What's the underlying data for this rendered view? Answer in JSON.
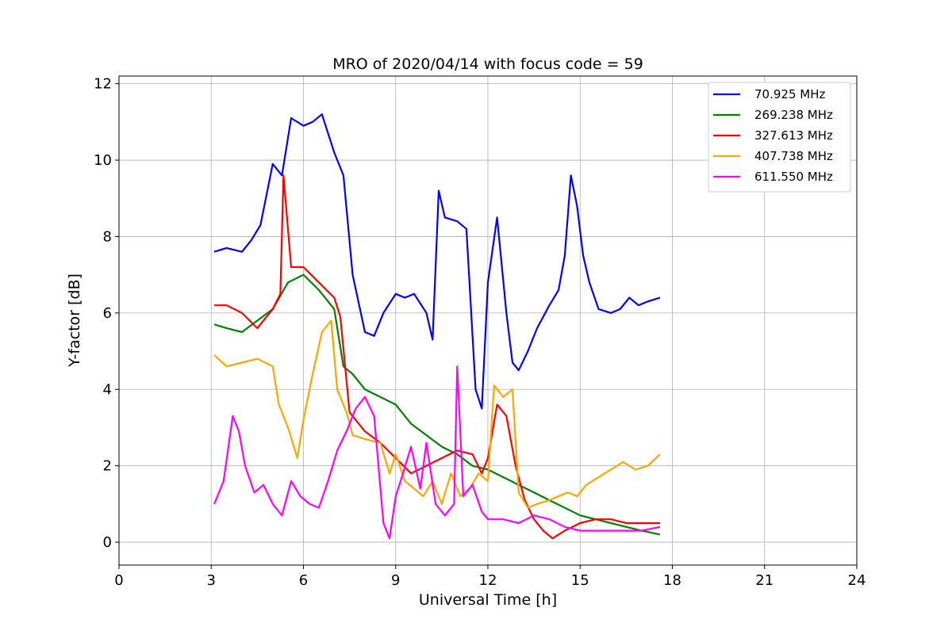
{
  "chart_data": {
    "type": "line",
    "title": "MRO of 2020/04/14 with focus code = 59",
    "xlabel": "Universal Time [h]",
    "ylabel": "Y-factor [dB]",
    "xlim": [
      0,
      24
    ],
    "ylim": [
      -0.6,
      12.2
    ],
    "xticks": [
      0,
      3,
      6,
      9,
      12,
      15,
      18,
      21,
      24
    ],
    "yticks": [
      0,
      2,
      4,
      6,
      8,
      10,
      12
    ],
    "grid": true,
    "legend_position": "top-right",
    "series": [
      {
        "name": " 70.925 MHz",
        "color": "#0000ff",
        "x": [
          3.1,
          3.5,
          4.0,
          4.3,
          4.6,
          5.0,
          5.3,
          5.6,
          6.0,
          6.3,
          6.6,
          7.0,
          7.3,
          7.6,
          8.0,
          8.3,
          8.6,
          9.0,
          9.3,
          9.6,
          10.0,
          10.2,
          10.4,
          10.6,
          11.0,
          11.3,
          11.6,
          11.8,
          12.0,
          12.3,
          12.6,
          12.8,
          13.0,
          13.3,
          13.6,
          14.0,
          14.3,
          14.5,
          14.7,
          14.9,
          15.1,
          15.3,
          15.6,
          16.0,
          16.3,
          16.6,
          16.9,
          17.2,
          17.6
        ],
        "values": [
          7.6,
          7.7,
          7.6,
          7.9,
          8.3,
          9.9,
          9.6,
          11.1,
          10.9,
          11.0,
          11.2,
          10.2,
          9.6,
          7.0,
          5.5,
          5.4,
          6.0,
          6.5,
          6.4,
          6.5,
          6.0,
          5.3,
          9.2,
          8.5,
          8.4,
          8.2,
          4.0,
          3.5,
          6.8,
          8.5,
          6.0,
          4.7,
          4.5,
          5.0,
          5.6,
          6.2,
          6.6,
          7.5,
          9.6,
          8.8,
          7.5,
          6.8,
          6.1,
          6.0,
          6.1,
          6.4,
          6.2,
          6.3,
          6.4
        ]
      },
      {
        "name": "269.238 MHz",
        "color": "#008000",
        "x": [
          3.1,
          3.5,
          4.0,
          4.5,
          5.0,
          5.5,
          6.0,
          6.5,
          7.0,
          7.3,
          7.6,
          8.0,
          8.5,
          9.0,
          9.5,
          10.0,
          10.5,
          11.0,
          11.5,
          12.0,
          12.5,
          13.0,
          13.5,
          14.0,
          14.5,
          15.0,
          15.5,
          16.0,
          16.5,
          17.0,
          17.6
        ],
        "values": [
          5.7,
          5.6,
          5.5,
          5.8,
          6.1,
          6.8,
          7.0,
          6.6,
          6.1,
          4.6,
          4.4,
          4.0,
          3.8,
          3.6,
          3.1,
          2.8,
          2.5,
          2.3,
          2.0,
          1.9,
          1.7,
          1.5,
          1.3,
          1.1,
          0.9,
          0.7,
          0.6,
          0.5,
          0.4,
          0.3,
          0.2
        ]
      },
      {
        "name": "327.613 MHz",
        "color": "#ff0000",
        "x": [
          3.1,
          3.5,
          4.0,
          4.5,
          5.0,
          5.25,
          5.35,
          5.6,
          6.0,
          6.5,
          7.0,
          7.2,
          7.5,
          8.0,
          8.5,
          9.0,
          9.5,
          10.0,
          10.5,
          11.0,
          11.5,
          11.8,
          12.0,
          12.3,
          12.6,
          12.9,
          13.2,
          13.5,
          13.8,
          14.1,
          14.5,
          15.0,
          15.5,
          16.0,
          16.5,
          17.0,
          17.6
        ],
        "values": [
          6.2,
          6.2,
          6.0,
          5.6,
          6.1,
          6.5,
          9.6,
          7.2,
          7.2,
          6.8,
          6.4,
          5.9,
          3.4,
          2.9,
          2.6,
          2.2,
          1.8,
          2.0,
          2.2,
          2.4,
          2.3,
          1.8,
          2.2,
          3.6,
          3.3,
          2.0,
          1.1,
          0.6,
          0.3,
          0.1,
          0.3,
          0.5,
          0.6,
          0.6,
          0.5,
          0.5,
          0.5
        ]
      },
      {
        "name": "407.738 MHz",
        "color": "#ffa500",
        "x": [
          3.1,
          3.5,
          4.0,
          4.5,
          5.0,
          5.2,
          5.5,
          5.8,
          6.0,
          6.3,
          6.6,
          6.9,
          7.1,
          7.4,
          7.6,
          8.0,
          8.5,
          8.8,
          9.0,
          9.3,
          9.6,
          9.9,
          10.2,
          10.5,
          10.8,
          11.1,
          11.4,
          11.7,
          12.0,
          12.2,
          12.5,
          12.8,
          13.0,
          13.3,
          13.6,
          14.0,
          14.3,
          14.6,
          14.9,
          15.2,
          15.6,
          16.0,
          16.4,
          16.8,
          17.2,
          17.6
        ],
        "values": [
          4.9,
          4.6,
          4.7,
          4.8,
          4.6,
          3.6,
          3.0,
          2.2,
          3.2,
          4.4,
          5.5,
          5.8,
          4.0,
          3.4,
          2.8,
          2.7,
          2.6,
          1.8,
          2.3,
          1.6,
          1.4,
          1.2,
          1.6,
          1.0,
          1.8,
          1.2,
          1.4,
          1.8,
          1.6,
          4.1,
          3.8,
          4.0,
          1.3,
          0.9,
          1.0,
          1.1,
          1.2,
          1.3,
          1.2,
          1.5,
          1.7,
          1.9,
          2.1,
          1.9,
          2.0,
          2.3
        ]
      },
      {
        "name": "611.550 MHz",
        "color": "#ff00ff",
        "x": [
          3.1,
          3.4,
          3.7,
          3.9,
          4.1,
          4.4,
          4.7,
          5.0,
          5.3,
          5.6,
          5.9,
          6.2,
          6.5,
          6.8,
          7.1,
          7.4,
          7.7,
          8.0,
          8.3,
          8.6,
          8.8,
          9.0,
          9.2,
          9.5,
          9.8,
          10.0,
          10.3,
          10.6,
          10.9,
          11.0,
          11.2,
          11.5,
          11.8,
          12.0,
          12.5,
          13.0,
          13.5,
          14.0,
          14.5,
          15.0,
          15.5,
          16.0,
          16.5,
          17.0,
          17.6
        ],
        "values": [
          1.0,
          1.6,
          3.3,
          2.9,
          2.0,
          1.3,
          1.5,
          1.0,
          0.7,
          1.6,
          1.2,
          1.0,
          0.9,
          1.6,
          2.4,
          2.9,
          3.5,
          3.8,
          3.3,
          0.5,
          0.1,
          1.2,
          1.7,
          2.5,
          1.4,
          2.6,
          1.0,
          0.7,
          1.0,
          4.6,
          1.2,
          1.5,
          0.8,
          0.6,
          0.6,
          0.5,
          0.7,
          0.6,
          0.4,
          0.3,
          0.3,
          0.3,
          0.3,
          0.3,
          0.4
        ]
      }
    ]
  }
}
